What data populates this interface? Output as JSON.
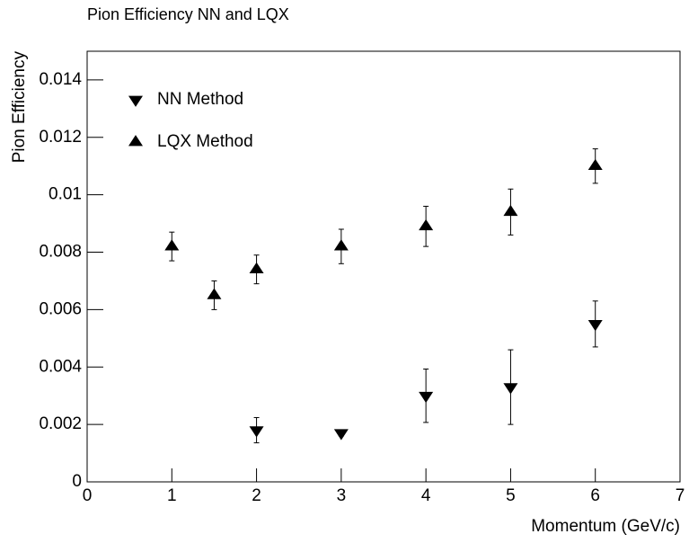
{
  "chart_data": {
    "type": "scatter",
    "title": "Pion Efficiency NN and LQX",
    "x_label": "Momentum (GeV/c)",
    "y_label": "Pion Efficiency",
    "xlim": [
      0,
      7
    ],
    "xticks": [
      0,
      1,
      2,
      3,
      4,
      5,
      6,
      7
    ],
    "ylim": [
      0,
      0.015
    ],
    "yticks": [
      0,
      0.002,
      0.004,
      0.006,
      0.008,
      0.01,
      0.012,
      0.014
    ],
    "legend": "top-left",
    "series": [
      {
        "name": "NN Method",
        "marker": "triangle-down",
        "color": "#000000",
        "x": [
          2,
          3,
          4,
          5,
          6
        ],
        "values": [
          0.0018,
          0.0017,
          0.003,
          0.0033,
          0.0055
        ],
        "errors": [
          0.00044,
          0.0001,
          0.00093,
          0.0013,
          0.0008
        ]
      },
      {
        "name": "LQX Method",
        "marker": "triangle-up",
        "color": "#000000",
        "x": [
          1,
          1.5,
          2,
          3,
          4,
          5,
          6
        ],
        "values": [
          0.0082,
          0.0065,
          0.0074,
          0.0082,
          0.0089,
          0.0094,
          0.011
        ],
        "errors": [
          0.0005,
          0.0005,
          0.0005,
          0.0006,
          0.0007,
          0.0008,
          0.0006
        ]
      }
    ]
  }
}
